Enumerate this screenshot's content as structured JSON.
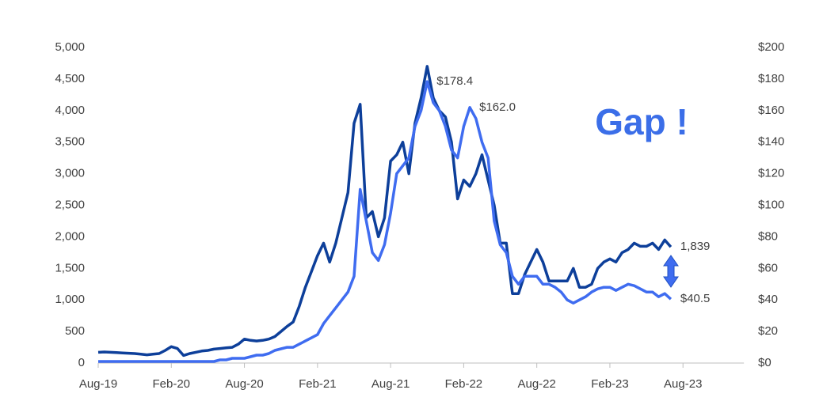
{
  "chart_data": {
    "type": "line",
    "annotation": "Gap !",
    "categories": [
      "Aug-19",
      null,
      null,
      null,
      null,
      null,
      null,
      null,
      null,
      null,
      null,
      null,
      "Feb-20",
      null,
      null,
      null,
      null,
      null,
      null,
      null,
      null,
      null,
      null,
      null,
      "Aug-20",
      null,
      null,
      null,
      null,
      null,
      null,
      null,
      null,
      null,
      null,
      null,
      "Feb-21",
      null,
      null,
      null,
      null,
      null,
      null,
      null,
      null,
      null,
      null,
      null,
      "Aug-21",
      null,
      null,
      null,
      null,
      null,
      null,
      null,
      null,
      null,
      null,
      null,
      "Feb-22",
      null,
      null,
      null,
      null,
      null,
      null,
      null,
      null,
      null,
      null,
      null,
      "Aug-22",
      null,
      null,
      null,
      null,
      null,
      null,
      null,
      null,
      null,
      null,
      null,
      "Feb-23",
      null,
      null,
      null,
      null,
      null,
      null,
      null,
      null,
      null,
      null,
      null,
      "Aug-23",
      null,
      null,
      null,
      null,
      null,
      null,
      null,
      null,
      null,
      null
    ],
    "series": [
      {
        "color": "#0d3f9a",
        "values": [
          170,
          175,
          170,
          165,
          160,
          155,
          150,
          140,
          130,
          140,
          150,
          200,
          260,
          230,
          120,
          150,
          170,
          190,
          200,
          220,
          230,
          240,
          250,
          300,
          380,
          360,
          350,
          360,
          380,
          420,
          500,
          580,
          650,
          900,
          1200,
          1450,
          1700,
          1900,
          1600,
          1900,
          2300,
          2700,
          3800,
          4100,
          2300,
          2400,
          2000,
          2300,
          3200,
          3300,
          3500,
          3000,
          3800,
          4200,
          4700,
          4200,
          4000,
          3900,
          3500,
          2600,
          2900,
          2800,
          3000,
          3300,
          2900,
          2500,
          1900,
          1900,
          1100,
          1100,
          1400,
          1600,
          1800,
          1600,
          1300,
          1300,
          1300,
          1300,
          1500,
          1200,
          1200,
          1250,
          1500,
          1600,
          1650,
          1600,
          1750,
          1800,
          1900,
          1850,
          1850,
          1900,
          1800,
          1950,
          1839,
          null,
          null,
          null,
          null,
          null,
          null,
          null,
          null,
          null,
          null,
          null,
          null
        ],
        "value_labels": [
          null,
          null,
          null,
          null,
          null,
          null,
          null,
          null,
          null,
          null,
          null,
          null,
          null,
          null,
          null,
          null,
          null,
          null,
          null,
          null,
          null,
          null,
          null,
          null,
          null,
          null,
          null,
          null,
          null,
          null,
          null,
          null,
          null,
          null,
          null,
          null,
          null,
          null,
          null,
          null,
          null,
          null,
          null,
          null,
          null,
          null,
          null,
          null,
          null,
          null,
          null,
          null,
          null,
          null,
          null,
          null,
          null,
          null,
          null,
          null,
          null,
          null,
          null,
          null,
          null,
          null,
          null,
          null,
          null,
          null,
          null,
          null,
          null,
          null,
          null,
          null,
          null,
          null,
          null,
          null,
          null,
          null,
          null,
          null,
          null,
          null,
          null,
          null,
          null,
          null,
          null,
          null,
          null,
          null,
          "1,839",
          null,
          null,
          null,
          null,
          null,
          null,
          null,
          null,
          null,
          null,
          null,
          null
        ]
      },
      {
        "color": "#3f6cf0",
        "axis": "y2",
        "values": [
          1,
          1,
          1,
          1,
          1,
          1,
          1,
          1,
          1,
          1,
          1,
          1,
          1,
          1,
          1,
          1,
          1,
          1,
          1,
          1,
          2,
          2,
          3,
          3,
          3,
          4,
          5,
          5,
          6,
          8,
          9,
          10,
          10,
          12,
          14,
          16,
          18,
          25,
          30,
          35,
          40,
          45,
          55,
          110,
          90,
          70,
          65,
          75,
          95,
          120,
          125,
          130,
          150,
          160,
          178.4,
          165,
          160,
          150,
          135,
          130,
          150,
          162,
          155,
          140,
          130,
          90,
          75,
          70,
          55,
          50,
          55,
          55,
          55,
          50,
          50,
          48,
          45,
          40,
          38,
          40,
          42,
          45,
          47,
          48,
          48,
          46,
          48,
          50,
          49,
          47,
          45,
          45,
          42,
          44,
          40.5,
          null,
          null,
          null,
          null,
          null,
          null,
          null,
          null,
          null,
          null,
          null,
          null
        ],
        "value_labels": [
          null,
          null,
          null,
          null,
          null,
          null,
          null,
          null,
          null,
          null,
          null,
          null,
          null,
          null,
          null,
          null,
          null,
          null,
          null,
          null,
          null,
          null,
          null,
          null,
          null,
          null,
          null,
          null,
          null,
          null,
          null,
          null,
          null,
          null,
          null,
          null,
          null,
          null,
          null,
          null,
          null,
          null,
          null,
          null,
          null,
          null,
          null,
          null,
          null,
          null,
          null,
          null,
          null,
          null,
          "$178.4",
          null,
          null,
          null,
          null,
          null,
          null,
          "$162.0",
          null,
          null,
          null,
          null,
          null,
          null,
          null,
          null,
          null,
          null,
          null,
          null,
          null,
          null,
          null,
          null,
          null,
          null,
          null,
          null,
          null,
          null,
          null,
          null,
          null,
          null,
          null,
          null,
          null,
          null,
          null,
          null,
          "$40.5",
          null,
          null,
          null,
          null,
          null,
          null,
          null,
          null,
          null,
          null,
          null,
          null
        ]
      }
    ],
    "ylim": [
      0,
      5000
    ],
    "yticks": [
      0,
      500,
      {
        "value": 1000,
        "label": "1,000"
      },
      {
        "value": 1500,
        "label": "1,500"
      },
      {
        "value": 2000,
        "label": "2,000"
      },
      {
        "value": 2500,
        "label": "2,500"
      },
      {
        "value": 3000,
        "label": "3,000"
      },
      {
        "value": 3500,
        "label": "3,500"
      },
      {
        "value": 4000,
        "label": "4,000"
      },
      {
        "value": 4500,
        "label": "4,500"
      },
      {
        "value": 5000,
        "label": "5,000"
      }
    ],
    "y2lim": [
      0,
      200
    ],
    "y2ticks": [
      {
        "value": 0,
        "label": "$0"
      },
      {
        "value": 20,
        "label": "$20"
      },
      {
        "value": 40,
        "label": "$40"
      },
      {
        "value": 60,
        "label": "$60"
      },
      {
        "value": 80,
        "label": "$80"
      },
      {
        "value": 100,
        "label": "$100"
      },
      {
        "value": 120,
        "label": "$120"
      },
      {
        "value": 140,
        "label": "$140"
      },
      {
        "value": 160,
        "label": "$160"
      },
      {
        "value": 180,
        "label": "$180"
      },
      {
        "value": 200,
        "label": "$200"
      }
    ]
  }
}
